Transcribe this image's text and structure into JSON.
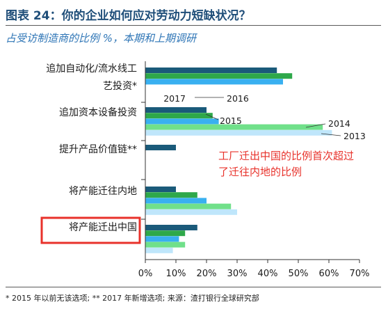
{
  "header": {
    "title": "图表 24：你的企业如何应对劳动力短缺状况？",
    "subtitle": "占受访制造商的比例 %，本期和上期调研"
  },
  "footnote": "* 2015 年以前无该选项; ** 2017 年新增选项; 来源：渣打银行全球研究部",
  "annotation": [
    "工厂迁出中国的比例首次超过",
    "了迁往内地的比例"
  ],
  "colors": {
    "2017": "#1a5a7a",
    "2016": "#2ea84a",
    "2015": "#39b0f0",
    "2014": "#70e08a",
    "2013": "#bfe6fb",
    "highlight_box": "#e8322b",
    "annotation": "#e8322b"
  },
  "chart_data": {
    "type": "bar",
    "orientation": "horizontal",
    "categories": [
      [
        "追加自动化/流水线工",
        "艺投资*"
      ],
      [
        "追加资本设备投资"
      ],
      [
        "提升产品价值链**"
      ],
      [
        "将产能迁往内地"
      ],
      [
        "将产能迁出中国"
      ]
    ],
    "series": [
      {
        "name": "2017",
        "values": [
          43,
          20,
          10,
          10,
          17
        ]
      },
      {
        "name": "2016",
        "values": [
          48,
          22,
          null,
          17,
          13
        ]
      },
      {
        "name": "2015",
        "values": [
          45,
          24,
          null,
          20,
          11
        ]
      },
      {
        "name": "2014",
        "values": [
          null,
          58,
          null,
          28,
          13
        ]
      },
      {
        "name": "2013",
        "values": [
          null,
          61,
          null,
          30,
          9
        ]
      }
    ],
    "xlim": [
      0,
      70
    ],
    "xticks": [
      "0%",
      "10%",
      "20%",
      "30%",
      "40%",
      "50%",
      "60%",
      "70%"
    ],
    "highlighted_category": "将产能迁出中国",
    "legend": "inline labels beside the bars of the second category"
  }
}
